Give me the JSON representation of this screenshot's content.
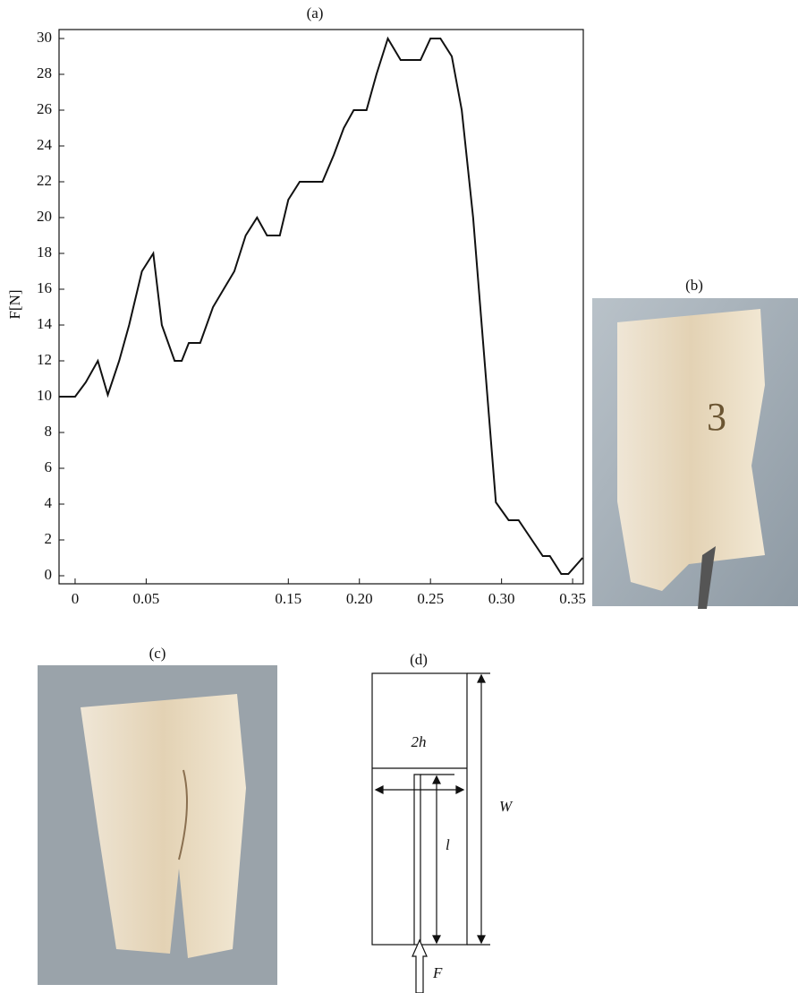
{
  "chart_data": {
    "type": "line",
    "title": "(a)",
    "y_label": "F[N]",
    "color": "#111111",
    "x": [
      -0.011,
      0,
      0.0075,
      0.016,
      0.023,
      0.031,
      0.038,
      0.047,
      0.055,
      0.061,
      0.07,
      0.075,
      0.08,
      0.088,
      0.097,
      0.112,
      0.12,
      0.128,
      0.135,
      0.144,
      0.15,
      0.158,
      0.174,
      0.182,
      0.189,
      0.196,
      0.205,
      0.212,
      0.22,
      0.229,
      0.243,
      0.25,
      0.257,
      0.265,
      0.272,
      0.28,
      0.296,
      0.305,
      0.312,
      0.329,
      0.334,
      0.342,
      0.347,
      0.357
    ],
    "values": [
      10,
      10,
      10.8,
      12,
      10.1,
      12,
      14,
      17,
      18,
      14,
      12,
      12,
      13,
      13,
      15,
      17,
      19,
      20,
      19,
      19,
      21,
      22,
      22,
      23.5,
      25,
      26,
      26,
      28,
      30,
      28.8,
      28.8,
      30,
      30,
      29,
      26,
      20,
      4.1,
      3.1,
      3.1,
      1.1,
      1.1,
      0.1,
      0.1,
      1
    ],
    "xlim": [
      -0.0113,
      0.3575
    ],
    "ylim": [
      -0.45,
      30.5
    ],
    "xticks": [
      0,
      0.05,
      0.15,
      {
        "value": 0.2,
        "label": "0.20"
      },
      0.25,
      {
        "value": 0.3,
        "label": "0.30"
      },
      0.35
    ],
    "yticks": [
      0,
      2,
      4,
      6,
      8,
      10,
      12,
      14,
      16,
      18,
      20,
      22,
      24,
      26,
      28,
      30
    ]
  },
  "panels": {
    "b": {
      "label": "(b)"
    },
    "c": {
      "label": "(c)"
    },
    "d": {
      "label": "(d)",
      "width": "2h",
      "length": "W",
      "crack": "l",
      "force": "F"
    }
  }
}
